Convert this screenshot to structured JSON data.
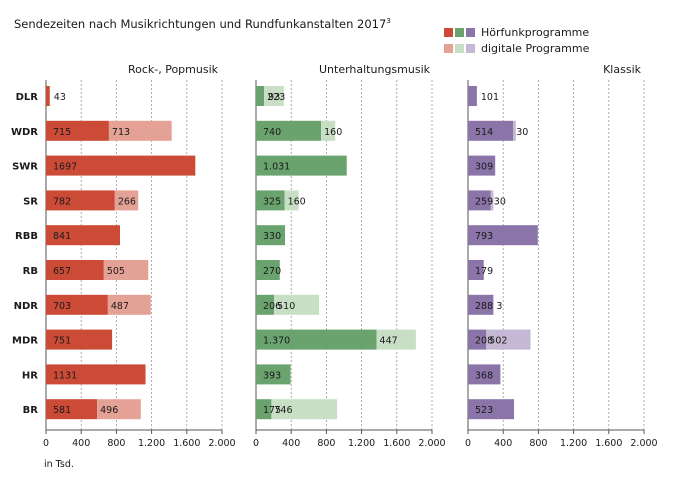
{
  "title": "Sendezeiten nach Musikrichtungen und Rundfunkanstalten 2017",
  "title_sup": "3",
  "legend": [
    {
      "label": "Hörfunkprogramme",
      "colors": [
        "#cc4b37",
        "#6aa36e",
        "#8a74a8"
      ]
    },
    {
      "label": "digitale Programme",
      "colors": [
        "#e4a195",
        "#c8dfc6",
        "#c4b8d4"
      ]
    }
  ],
  "unit_label": "in Tsd.",
  "chart_data": {
    "type": "bar",
    "orientation": "horizontal",
    "stacked": true,
    "categories": [
      "DLR",
      "WDR",
      "SWR",
      "SR",
      "RBB",
      "RB",
      "NDR",
      "MDR",
      "HR",
      "BR"
    ],
    "panels": [
      {
        "title": "Rock-, Popmusik",
        "xlim": [
          0,
          2000
        ],
        "ticks": [
          0,
          400,
          800,
          1200,
          1600,
          2000
        ],
        "tick_labels": [
          "0",
          "400",
          "800",
          "1.200",
          "1.600",
          "2.000"
        ],
        "colors": {
          "hoerfunk": "#cc4b37",
          "digital": "#e4a195"
        },
        "hoerfunk": [
          43,
          715,
          1697,
          782,
          841,
          657,
          703,
          751,
          1131,
          581
        ],
        "hoerfunk_labels": [
          "43",
          "715",
          "1697",
          "782",
          "841",
          "657",
          "703",
          "751",
          "1131",
          "581"
        ],
        "digital": [
          0,
          713,
          0,
          266,
          0,
          505,
          487,
          0,
          0,
          496
        ],
        "digital_labels": [
          "",
          "713",
          "",
          "266",
          "",
          "505",
          "487",
          "",
          "",
          "496"
        ]
      },
      {
        "title": "Unterhaltungsmusik",
        "xlim": [
          0,
          2000
        ],
        "ticks": [
          0,
          400,
          800,
          1200,
          1600,
          2000
        ],
        "tick_labels": [
          "0",
          "400",
          "800",
          "1.200",
          "1.600",
          "2.000"
        ],
        "colors": {
          "hoerfunk": "#6aa36e",
          "digital": "#c8dfc6"
        },
        "hoerfunk": [
          93,
          740,
          1031,
          325,
          330,
          270,
          206,
          1370,
          393,
          175
        ],
        "hoerfunk_labels": [
          "93",
          "740",
          "1.031",
          "325",
          "330",
          "270",
          "206",
          "1.370",
          "393",
          "175"
        ],
        "digital": [
          223,
          160,
          0,
          160,
          0,
          0,
          510,
          447,
          0,
          746
        ],
        "digital_labels": [
          "223",
          "160",
          "",
          "160",
          "",
          "",
          "510",
          "447",
          "",
          "746"
        ]
      },
      {
        "title": "Klassik",
        "xlim": [
          0,
          2000
        ],
        "ticks": [
          0,
          400,
          800,
          1200,
          1600,
          2000
        ],
        "tick_labels": [
          "0",
          "400",
          "800",
          "1.200",
          "1.600",
          "2.000"
        ],
        "colors": {
          "hoerfunk": "#8a74a8",
          "digital": "#c4b8d4"
        },
        "hoerfunk": [
          101,
          514,
          309,
          259,
          793,
          179,
          288,
          208,
          368,
          523
        ],
        "hoerfunk_labels": [
          "101",
          "514",
          "309",
          "259",
          "793",
          "179",
          "288",
          "208",
          "368",
          "523"
        ],
        "digital": [
          0,
          30,
          0,
          30,
          0,
          0,
          3,
          502,
          0,
          0
        ],
        "digital_labels": [
          "",
          "30",
          "",
          "30",
          "",
          "",
          "3",
          "502",
          "",
          ""
        ]
      }
    ]
  }
}
